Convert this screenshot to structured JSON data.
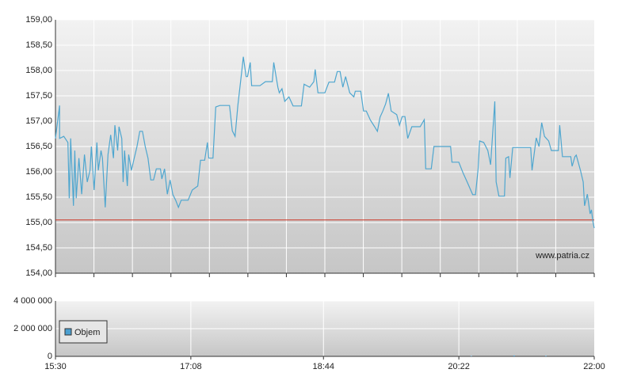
{
  "chart_data": [
    {
      "type": "line",
      "xlim": [
        930,
        1320
      ],
      "ylim": [
        154,
        159
      ],
      "yticks": [
        {
          "value": 154,
          "label": "154,00"
        },
        {
          "value": 154.5,
          "label": "154,50"
        },
        {
          "value": 155,
          "label": "155,00"
        },
        {
          "value": 155.5,
          "label": "155,50"
        },
        {
          "value": 156,
          "label": "156,00"
        },
        {
          "value": 156.5,
          "label": "156,50"
        },
        {
          "value": 157,
          "label": "157,00"
        },
        {
          "value": 157.5,
          "label": "157,50"
        },
        {
          "value": 158,
          "label": "158,00"
        },
        {
          "value": 158.5,
          "label": "158,50"
        },
        {
          "value": 159,
          "label": "159,00"
        }
      ],
      "grid": true,
      "reference_line": {
        "value": 155.05,
        "color": "#cc3322"
      },
      "watermark": "www.patria.cz",
      "x": [
        930,
        933,
        933,
        936,
        939,
        940,
        941,
        943,
        944,
        945,
        947,
        949,
        951,
        953,
        955,
        956,
        958,
        960,
        961,
        963,
        964,
        966,
        968,
        970,
        972,
        973,
        975,
        976,
        978,
        979,
        980,
        982,
        983,
        985,
        987,
        989,
        991,
        993,
        995,
        997,
        999,
        1001,
        1003,
        1006,
        1007,
        1009,
        1011,
        1013,
        1015,
        1017,
        1019,
        1021,
        1023,
        1026,
        1029,
        1033,
        1035,
        1038,
        1040,
        1041,
        1044,
        1046,
        1049,
        1056,
        1058,
        1060,
        1062,
        1065,
        1066,
        1068,
        1069,
        1071,
        1072,
        1078,
        1082,
        1087,
        1088,
        1091,
        1092,
        1094,
        1096,
        1099,
        1102,
        1108,
        1110,
        1114,
        1117,
        1118,
        1120,
        1125,
        1128,
        1132,
        1134,
        1136,
        1138,
        1140,
        1143,
        1146,
        1147,
        1151,
        1153,
        1155,
        1158,
        1161,
        1163,
        1165,
        1167,
        1169,
        1171,
        1173,
        1177,
        1179,
        1181,
        1183,
        1185,
        1188,
        1194,
        1197,
        1198,
        1202,
        1204,
        1216,
        1217,
        1222,
        1225,
        1228,
        1232,
        1234,
        1236,
        1237,
        1240,
        1243,
        1245,
        1248,
        1249,
        1251,
        1255,
        1256,
        1258,
        1259,
        1261,
        1274,
        1275,
        1278,
        1280,
        1282,
        1284,
        1287,
        1289,
        1294,
        1295,
        1297,
        1303,
        1304,
        1306,
        1307,
        1310,
        1312,
        1313,
        1315,
        1317,
        1318,
        1319,
        1320
      ],
      "series": [
        {
          "color": "#4ea6cf",
          "values": [
            156.66,
            157.31,
            156.66,
            156.7,
            156.58,
            155.48,
            156.66,
            155.33,
            156.42,
            155.48,
            156.27,
            155.56,
            156.34,
            155.8,
            156.03,
            156.5,
            155.64,
            156.58,
            156.03,
            156.42,
            156.27,
            155.3,
            156.34,
            156.73,
            156.27,
            156.92,
            156.42,
            156.89,
            156.66,
            155.8,
            156.42,
            155.72,
            156.34,
            156.03,
            156.27,
            156.5,
            156.8,
            156.8,
            156.5,
            156.27,
            155.84,
            155.84,
            156.06,
            156.06,
            155.86,
            156.06,
            155.56,
            155.84,
            155.55,
            155.44,
            155.3,
            155.44,
            155.44,
            155.44,
            155.64,
            155.72,
            156.23,
            156.23,
            156.58,
            156.27,
            156.27,
            157.28,
            157.31,
            157.31,
            156.81,
            156.7,
            157.31,
            158.02,
            158.27,
            157.88,
            157.88,
            158.16,
            157.7,
            157.7,
            157.78,
            157.78,
            158.16,
            157.67,
            157.56,
            157.64,
            157.39,
            157.48,
            157.3,
            157.3,
            157.73,
            157.67,
            157.78,
            158.02,
            157.56,
            157.56,
            157.77,
            157.77,
            157.98,
            157.98,
            157.67,
            157.88,
            157.56,
            157.48,
            157.59,
            157.59,
            157.2,
            157.2,
            157.02,
            156.89,
            156.8,
            157.08,
            157.2,
            157.34,
            157.55,
            157.2,
            157.13,
            156.92,
            157.09,
            157.09,
            156.66,
            156.89,
            156.89,
            157.03,
            156.06,
            156.06,
            156.5,
            156.5,
            156.19,
            156.19,
            155.98,
            155.8,
            155.55,
            155.55,
            156.06,
            156.61,
            156.58,
            156.42,
            156.14,
            157.39,
            155.8,
            155.52,
            155.52,
            156.27,
            156.3,
            155.88,
            156.48,
            156.48,
            156.03,
            156.67,
            156.5,
            156.97,
            156.7,
            156.61,
            156.42,
            156.42,
            156.92,
            156.3,
            156.3,
            156.11,
            156.3,
            156.33,
            156.03,
            155.8,
            155.33,
            155.56,
            155.17,
            155.25,
            155.02,
            154.89
          ]
        }
      ]
    },
    {
      "type": "bar",
      "xlim": [
        930,
        1320
      ],
      "xticks": [
        {
          "value": 930,
          "label": "15:30"
        },
        {
          "value": 1028,
          "label": "17:08"
        },
        {
          "value": 1124,
          "label": "18:44"
        },
        {
          "value": 1222,
          "label": "20:22"
        },
        {
          "value": 1320,
          "label": "22:00"
        }
      ],
      "ylim": [
        0,
        4000000
      ],
      "yticks": [
        0,
        {
          "value": 2000000,
          "label": "2 000 000"
        },
        {
          "value": 4000000,
          "label": "4 000 000"
        }
      ],
      "grid": true,
      "series": [
        {
          "name": "Objem",
          "color": "#4a9fd0",
          "x": [
            1231,
            1262,
            1285
          ],
          "values": [
            30000,
            60000,
            40000
          ]
        }
      ]
    }
  ]
}
